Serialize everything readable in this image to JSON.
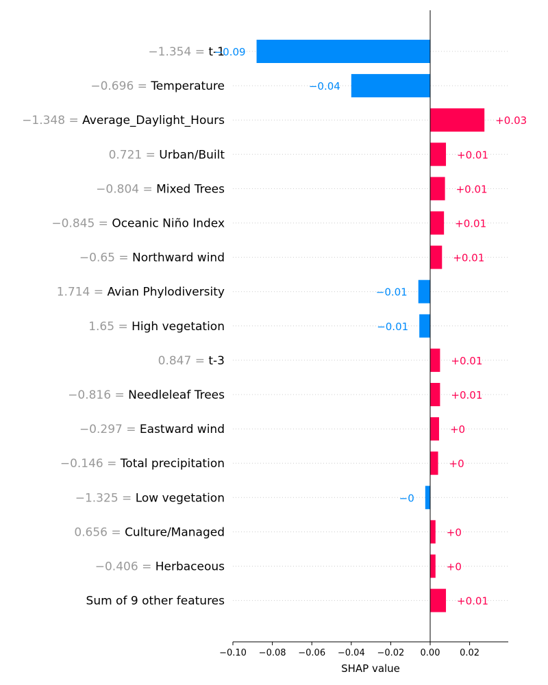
{
  "chart_data": {
    "type": "bar",
    "orientation": "horizontal",
    "xlabel": "SHAP value",
    "xlim": [
      -0.1,
      0.04
    ],
    "xticks": [
      -0.1,
      -0.08,
      -0.06,
      -0.04,
      -0.02,
      0.0,
      0.02
    ],
    "xtick_labels": [
      "−0.10",
      "−0.08",
      "−0.06",
      "−0.04",
      "−0.02",
      "0.00",
      "0.02"
    ],
    "grid": "horizontal dotted lines per row",
    "colors": {
      "positive": "#ff0051",
      "negative": "#008bfb",
      "feature_value": "#999999",
      "feature_name": "#000000"
    },
    "rows": [
      {
        "value": "−1.354 = ",
        "name": "t-1",
        "shap": -0.088,
        "label": "−0.09"
      },
      {
        "value": "−0.696 = ",
        "name": "Temperature",
        "shap": -0.04,
        "label": "−0.04"
      },
      {
        "value": "−1.348 = ",
        "name": "Average_Daylight_Hours",
        "shap": 0.0275,
        "label": "+0.03"
      },
      {
        "value": "0.721 = ",
        "name": "Urban/Built",
        "shap": 0.008,
        "label": "+0.01"
      },
      {
        "value": "−0.804 = ",
        "name": "Mixed Trees",
        "shap": 0.0075,
        "label": "+0.01"
      },
      {
        "value": "−0.845 = ",
        "name": "Oceanic Niño Index",
        "shap": 0.007,
        "label": "+0.01"
      },
      {
        "value": "−0.65 = ",
        "name": "Northward wind",
        "shap": 0.006,
        "label": "+0.01"
      },
      {
        "value": "1.714 = ",
        "name": "Avian Phylodiversity",
        "shap": -0.006,
        "label": "−0.01"
      },
      {
        "value": "1.65 = ",
        "name": "High vegetation",
        "shap": -0.0055,
        "label": "−0.01"
      },
      {
        "value": "0.847 = ",
        "name": "t-3",
        "shap": 0.005,
        "label": "+0.01"
      },
      {
        "value": "−0.816 = ",
        "name": "Needleleaf Trees",
        "shap": 0.005,
        "label": "+0.01"
      },
      {
        "value": "−0.297 = ",
        "name": "Eastward wind",
        "shap": 0.0045,
        "label": "+0"
      },
      {
        "value": "−0.146 = ",
        "name": "Total precipitation",
        "shap": 0.004,
        "label": "+0"
      },
      {
        "value": "−1.325 = ",
        "name": "Low vegetation",
        "shap": -0.0025,
        "label": "−0"
      },
      {
        "value": "0.656 = ",
        "name": "Culture/Managed",
        "shap": 0.0027,
        "label": "+0"
      },
      {
        "value": "−0.406 = ",
        "name": "Herbaceous",
        "shap": 0.0027,
        "label": "+0"
      },
      {
        "value": "",
        "name": "Sum of 9 other features",
        "shap": 0.008,
        "label": "+0.01"
      }
    ]
  }
}
